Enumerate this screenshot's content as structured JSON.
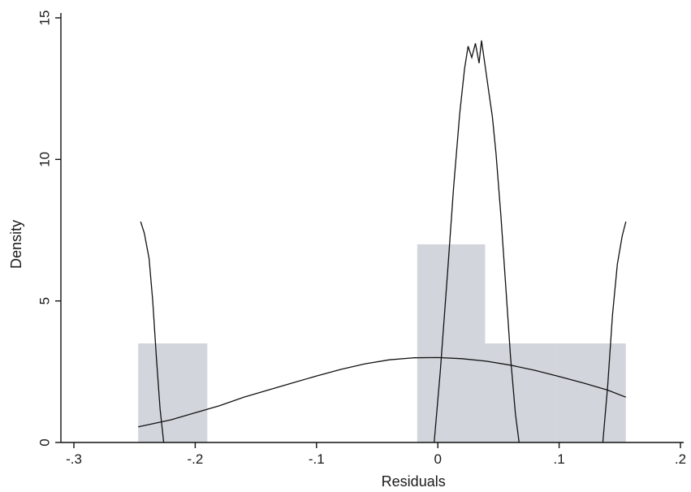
{
  "chart_data": {
    "type": "bar",
    "xlabel": "Residuals",
    "ylabel": "Density",
    "xlim": [
      -0.3,
      0.2
    ],
    "ylim": [
      0,
      15
    ],
    "x_ticks": [
      -0.3,
      -0.2,
      -0.1,
      0,
      0.1,
      0.2
    ],
    "x_tick_labels": [
      "-.3",
      "-.2",
      "-.1",
      "0",
      ".1",
      ".2"
    ],
    "y_ticks": [
      0,
      5,
      10,
      15
    ],
    "y_tick_labels": [
      "0",
      "5",
      "10",
      "15"
    ],
    "grid": false,
    "histogram": {
      "bins": [
        {
          "x0": -0.247,
          "x1": -0.19,
          "density": 3.5
        },
        {
          "x0": -0.017,
          "x1": 0.039,
          "density": 7.0
        },
        {
          "x0": 0.039,
          "x1": 0.098,
          "density": 3.5
        },
        {
          "x0": 0.098,
          "x1": 0.155,
          "density": 3.5
        }
      ]
    },
    "series": [
      {
        "type": "line",
        "x": [
          -0.247,
          -0.22,
          -0.2,
          -0.18,
          -0.16,
          -0.14,
          -0.12,
          -0.1,
          -0.08,
          -0.06,
          -0.04,
          -0.02,
          0.0,
          0.02,
          0.04,
          0.06,
          0.08,
          0.1,
          0.12,
          0.14,
          0.155
        ],
        "y": [
          0.55,
          0.8,
          1.05,
          1.3,
          1.6,
          1.85,
          2.1,
          2.35,
          2.58,
          2.78,
          2.92,
          2.99,
          3.0,
          2.96,
          2.87,
          2.73,
          2.55,
          2.33,
          2.1,
          1.85,
          1.6
        ]
      },
      {
        "type": "line",
        "x": [
          -0.245,
          -0.242,
          -0.238,
          -0.235,
          -0.232,
          -0.229,
          -0.226
        ],
        "y": [
          7.8,
          7.4,
          6.5,
          5.0,
          3.0,
          1.2,
          0.0
        ]
      },
      {
        "type": "line",
        "x": [
          -0.003,
          0.002,
          0.008,
          0.013,
          0.018,
          0.022,
          0.025,
          0.028,
          0.031,
          0.034,
          0.036,
          0.039,
          0.042,
          0.045,
          0.048,
          0.052,
          0.056,
          0.06,
          0.064,
          0.067
        ],
        "y": [
          0.0,
          2.5,
          6.0,
          9.0,
          11.6,
          13.2,
          14.0,
          13.6,
          14.1,
          13.4,
          14.2,
          13.3,
          12.4,
          11.5,
          10.2,
          8.0,
          5.5,
          3.0,
          1.0,
          0.0
        ]
      },
      {
        "type": "line",
        "x": [
          0.136,
          0.14,
          0.144,
          0.148,
          0.152,
          0.155
        ],
        "y": [
          0.0,
          2.0,
          4.5,
          6.3,
          7.3,
          7.8
        ]
      }
    ]
  }
}
